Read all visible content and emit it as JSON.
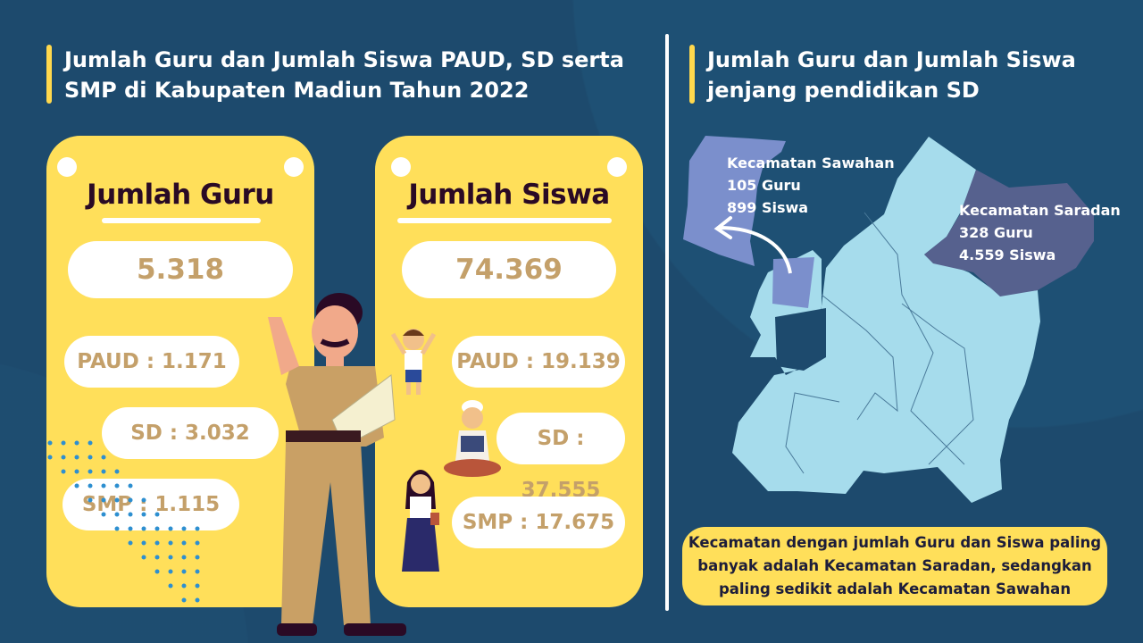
{
  "left_title": "Jumlah Guru dan Jumlah Siswa PAUD, SD serta SMP di Kabupaten Madiun Tahun 2022",
  "right_title": "Jumlah Guru dan Jumlah Siswa jenjang pendidikan SD",
  "guru_card": {
    "title": "Jumlah Guru",
    "total": "5.318",
    "items": [
      "PAUD : 1.171",
      "SD : 3.032",
      "SMP : 1.115"
    ]
  },
  "siswa_card": {
    "title": "Jumlah Siswa",
    "total": "74.369",
    "items": [
      "PAUD : 19.139",
      "SD : 37.555",
      "SMP : 17.675"
    ]
  },
  "map": {
    "sawahan": {
      "name": "Kecamatan Sawahan",
      "guru": "105 Guru",
      "siswa": "899 Siswa",
      "color": "#7b8fcc"
    },
    "saradan": {
      "name": "Kecamatan Saradan",
      "guru": "328 Guru",
      "siswa": "4.559 Siswa",
      "color": "#56618e"
    },
    "base_color": "#a6dcec"
  },
  "note": "Kecamatan dengan jumlah Guru dan Siswa paling banyak adalah Kecamatan Saradan, sedangkan paling sedikit adalah Kecamatan Sawahan",
  "colors": {
    "background": "#1d4a6d",
    "card": "#ffdf5a",
    "value_text": "#c4a06a",
    "accent": "#ffd84d"
  }
}
